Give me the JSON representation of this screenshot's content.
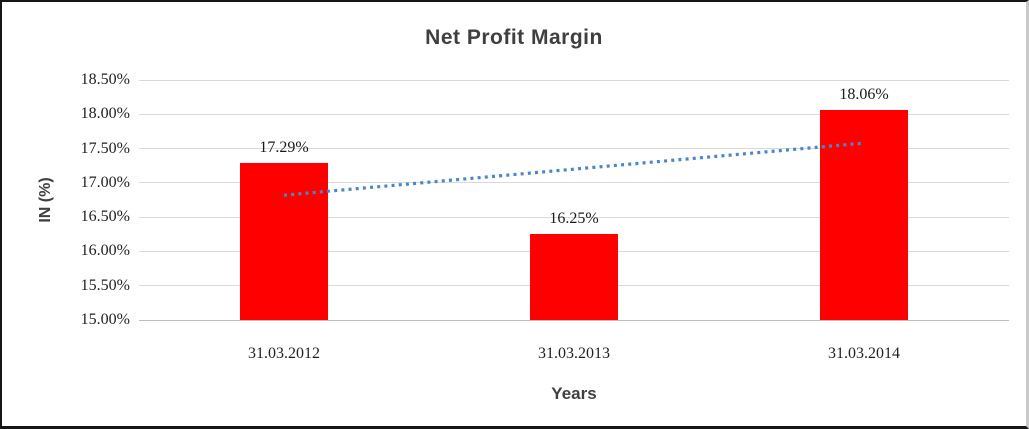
{
  "chart_data": {
    "type": "bar",
    "title": "Net Profit Margin",
    "xlabel": "Years",
    "ylabel": "IN (%)",
    "categories": [
      "31.03.2012",
      "31.03.2013",
      "31.03.2014"
    ],
    "series": [
      {
        "name": "Net Profit Margin",
        "values": [
          17.29,
          16.25,
          18.06
        ]
      }
    ],
    "value_labels": [
      "17.29%",
      "16.25%",
      "18.06%"
    ],
    "ylim": [
      15.0,
      18.5
    ],
    "ytick_step": 0.5,
    "ytick_labels": [
      "18.50%",
      "18.00%",
      "17.50%",
      "17.00%",
      "16.50%",
      "16.00%",
      "15.50%",
      "15.00%"
    ],
    "grid": true,
    "legend_position": "none",
    "bar_color": "#ff0000",
    "gridline_color": "#d9d9d9",
    "title_color": "#3f3f3f",
    "trendline": {
      "type": "linear",
      "style": "dotted",
      "color": "#4a86c8",
      "start_value": 16.82,
      "end_value": 17.58
    }
  }
}
